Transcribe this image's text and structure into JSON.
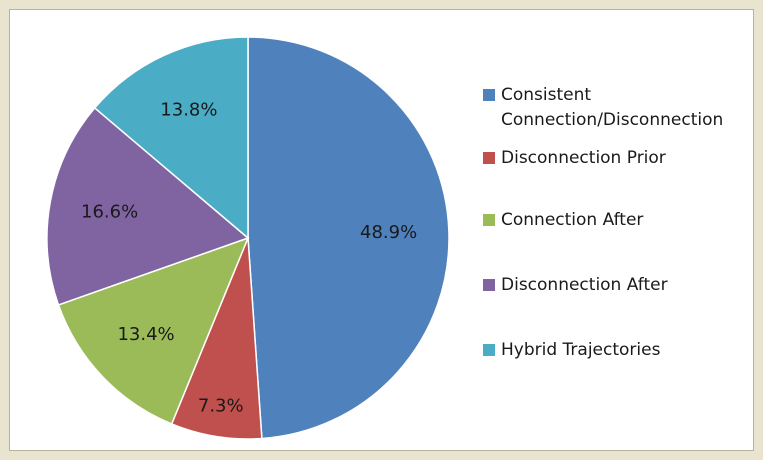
{
  "chart_data": {
    "type": "pie",
    "categories": [
      "Consistent Connection/Disconnection",
      "Disconnection Prior",
      "Connection After",
      "Disconnection After",
      "Hybrid Trajectories"
    ],
    "values": [
      48.9,
      7.3,
      13.4,
      16.6,
      13.8
    ],
    "value_labels": [
      "48.9%",
      "7.3%",
      "13.4%",
      "16.6%",
      "13.8%"
    ],
    "colors": [
      "#4f81bd",
      "#c0504d",
      "#9bbb59",
      "#8064a2",
      "#4bacc6"
    ],
    "legend": "right"
  }
}
